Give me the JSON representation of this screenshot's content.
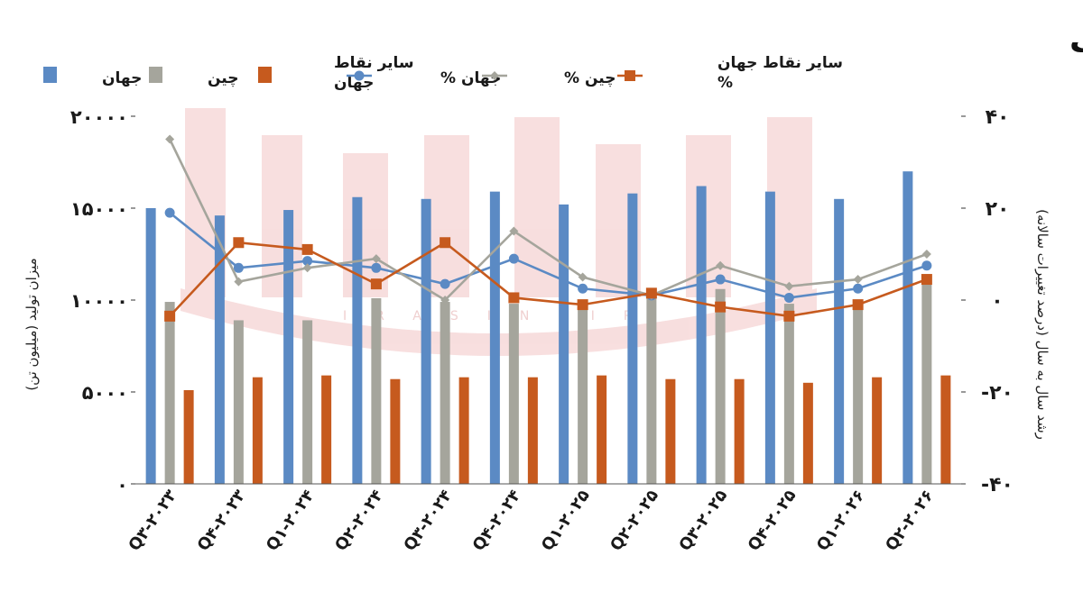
{
  "chart_data": {
    "type": "bar",
    "title": "تولید کارگاه‌های ذوب",
    "watermark": "IRASIN.IR",
    "ylabel": "میزان تولید (میلیون تن)",
    "ylabel_right": "رشد سال به سال (درصد تغییرات سالانه)",
    "ylim": [
      0,
      20000
    ],
    "ylim_right": [
      -40,
      40
    ],
    "yticks": [
      "۰",
      "۵۰۰۰",
      "۱۰۰۰۰",
      "۱۵۰۰۰",
      "۲۰۰۰۰"
    ],
    "yticks_right": [
      "-۴۰",
      "-۲۰",
      "۰",
      "۲۰",
      "۴۰"
    ],
    "categories": [
      "Q۳-۲۰۲۳",
      "Q۴-۲۰۲۳",
      "Q۱-۲۰۲۴",
      "Q۲-۲۰۲۴",
      "Q۳-۲۰۲۴",
      "Q۴-۲۰۲۴",
      "Q۱-۲۰۲۵",
      "Q۲-۲۰۲۵",
      "Q۳-۲۰۲۵",
      "Q۴-۲۰۲۵",
      "Q۱-۲۰۲۶",
      "Q۲-۲۰۲۶"
    ],
    "series": [
      {
        "name": "جهان",
        "type": "bar",
        "axis": "left",
        "color": "#5b8ac4",
        "values": [
          15000,
          14600,
          14900,
          15600,
          15500,
          15900,
          15200,
          15800,
          16200,
          15900,
          15500,
          17000
        ]
      },
      {
        "name": "چین",
        "type": "bar",
        "axis": "left",
        "color": "#a5a59c",
        "values": [
          9900,
          8900,
          8900,
          10100,
          9900,
          9800,
          9800,
          10100,
          10600,
          9800,
          9600,
          11000
        ]
      },
      {
        "name": "سایر نقاط جهان",
        "type": "bar",
        "axis": "left",
        "color": "#c65a1e",
        "values": [
          5100,
          5800,
          5900,
          5700,
          5800,
          5800,
          5900,
          5700,
          5700,
          5500,
          5800,
          5900
        ]
      },
      {
        "name": "جهان %",
        "type": "line",
        "axis": "right",
        "color": "#5b8ac4",
        "marker": "circle",
        "values": [
          19,
          7,
          8.5,
          7,
          3.5,
          9,
          2.5,
          1,
          4.5,
          0.5,
          2.5,
          7.5
        ]
      },
      {
        "name": "چین %",
        "type": "line",
        "axis": "right",
        "color": "#a5a59c",
        "marker": "diamond",
        "values": [
          35,
          4,
          7,
          9,
          0,
          15,
          5,
          1,
          7.5,
          3,
          4.5,
          10
        ]
      },
      {
        "name": "سایر نقاط جهان %",
        "type": "line",
        "axis": "right",
        "color": "#c65a1e",
        "marker": "square",
        "values": [
          -3.5,
          12.5,
          11,
          3.5,
          12.5,
          0.5,
          -1,
          1.5,
          -1.5,
          -3.5,
          -1,
          4.5
        ]
      }
    ],
    "legend": {
      "placement": "top",
      "items": [
        {
          "label": "جهان",
          "kind": "bar",
          "color": "#5b8ac4"
        },
        {
          "label": "چین",
          "kind": "bar",
          "color": "#a5a59c"
        },
        {
          "label": "سایر نقاط جهان",
          "kind": "bar",
          "color": "#c65a1e"
        },
        {
          "label": "جهان %",
          "kind": "line",
          "color": "#5b8ac4",
          "marker": "circle"
        },
        {
          "label": "چین %",
          "kind": "line",
          "color": "#a5a59c",
          "marker": "diamond"
        },
        {
          "label": "سایر نقاط جهان %",
          "kind": "line",
          "color": "#c65a1e",
          "marker": "square"
        }
      ]
    },
    "grid": false
  }
}
